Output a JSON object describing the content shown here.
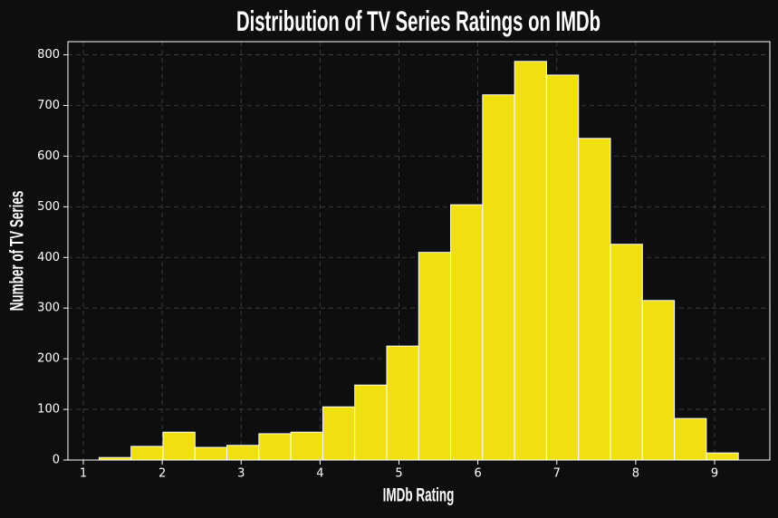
{
  "chart_data": {
    "type": "histogram",
    "title": "Distribution of TV Series Ratings on IMDb",
    "x_label": "IMDb Rating",
    "y_label": "Number of TV Series",
    "bins": [
      1.2,
      1.605,
      2.01,
      2.415,
      2.82,
      3.225,
      3.63,
      4.035,
      4.44,
      4.845,
      5.25,
      5.655,
      6.06,
      6.465,
      6.87,
      7.275,
      7.68,
      8.085,
      8.49,
      8.895,
      9.3
    ],
    "counts": [
      5,
      27,
      55,
      25,
      29,
      52,
      55,
      105,
      148,
      225,
      410,
      504,
      721,
      787,
      760,
      635,
      426,
      315,
      82,
      14
    ],
    "color": "#f0e010",
    "edgecolor": "#ffffff",
    "xlim": [
      0.805,
      9.7
    ],
    "ylim": [
      0,
      826
    ],
    "xticks": [
      1,
      2,
      3,
      4,
      5,
      6,
      7,
      8,
      9
    ],
    "yticks": [
      0,
      100,
      200,
      300,
      400,
      500,
      600,
      700,
      800
    ],
    "grid": true
  }
}
